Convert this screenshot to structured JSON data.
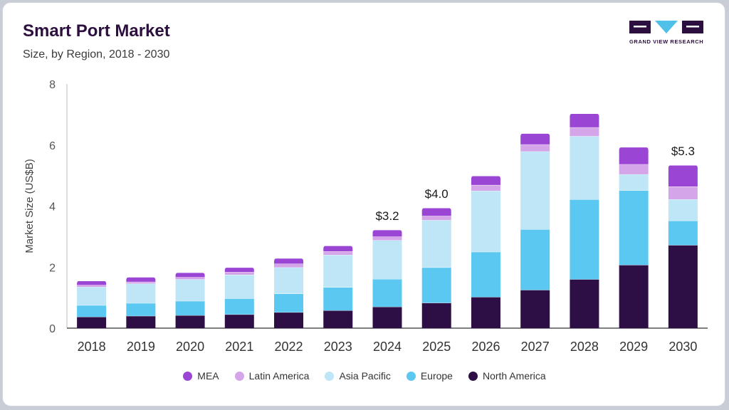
{
  "header": {
    "title": "Smart Port Market",
    "subtitle": "Size, by Region, 2018 - 2030"
  },
  "brand": {
    "name": "GRAND VIEW RESEARCH",
    "color": "#2d0f3f",
    "accent": "#4fc0e8"
  },
  "chart_data": {
    "type": "bar",
    "stacked": true,
    "title": "Smart Port Market",
    "subtitle": "Size, by Region, 2018 - 2030",
    "xlabel": "",
    "ylabel": "Market Size (US$B)",
    "ylim": [
      0,
      8
    ],
    "yticks": [
      0,
      2,
      4,
      6,
      8
    ],
    "grid": false,
    "legend_position": "bottom",
    "categories": [
      "2018",
      "2019",
      "2020",
      "2021",
      "2022",
      "2023",
      "2024",
      "2025",
      "2026",
      "2027",
      "2028",
      "2029",
      "2030"
    ],
    "series": [
      {
        "name": "North America",
        "color": "#2d0f45",
        "values": [
          0.37,
          0.4,
          0.42,
          0.45,
          0.52,
          0.58,
          0.7,
          0.83,
          1.02,
          1.25,
          1.6,
          2.07,
          2.72
        ]
      },
      {
        "name": "Europe",
        "color": "#5ac8f0",
        "values": [
          0.38,
          0.42,
          0.47,
          0.52,
          0.61,
          0.76,
          0.91,
          1.16,
          1.48,
          1.99,
          2.62,
          2.44,
          0.8
        ]
      },
      {
        "name": "Asia Pacific",
        "color": "#bee6f7",
        "values": [
          0.6,
          0.64,
          0.71,
          0.78,
          0.86,
          1.06,
          1.27,
          1.55,
          2.0,
          2.55,
          2.07,
          0.53,
          0.7
        ]
      },
      {
        "name": "Latin America",
        "color": "#d4a5e8",
        "values": [
          0.06,
          0.06,
          0.07,
          0.09,
          0.12,
          0.12,
          0.12,
          0.14,
          0.19,
          0.23,
          0.29,
          0.33,
          0.42
        ]
      },
      {
        "name": "MEA",
        "color": "#9b45d5",
        "values": [
          0.14,
          0.15,
          0.15,
          0.15,
          0.18,
          0.18,
          0.22,
          0.26,
          0.3,
          0.36,
          0.45,
          0.56,
          0.7
        ]
      }
    ],
    "annotations": [
      {
        "category": "2024",
        "text": "$3.2"
      },
      {
        "category": "2025",
        "text": "$4.0"
      },
      {
        "category": "2030",
        "text": "$5.3"
      }
    ]
  },
  "legend": {
    "items": [
      {
        "label": "MEA",
        "color": "#9b45d5"
      },
      {
        "label": "Latin America",
        "color": "#d4a5e8"
      },
      {
        "label": "Asia Pacific",
        "color": "#bee6f7"
      },
      {
        "label": "Europe",
        "color": "#5ac8f0"
      },
      {
        "label": "North America",
        "color": "#2d0f45"
      }
    ]
  }
}
